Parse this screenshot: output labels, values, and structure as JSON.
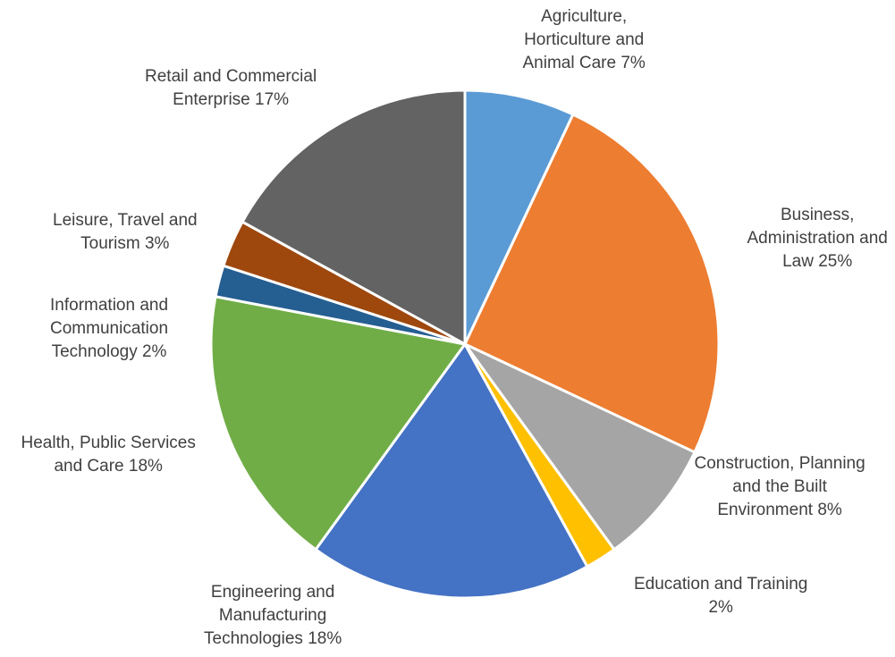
{
  "chart_data": {
    "type": "pie",
    "title": "",
    "start_angle_deg": 0,
    "direction": "clockwise",
    "slices": [
      {
        "label": "Agriculture, Horticulture and Animal Care",
        "value": 7,
        "display": [
          "Agriculture,",
          "Horticulture and",
          "Animal Care 7%"
        ],
        "color": "#5b9bd5"
      },
      {
        "label": "Business, Administration and Law",
        "value": 25,
        "display": [
          "Business,",
          "Administration and",
          "Law 25%"
        ],
        "color": "#ed7d31"
      },
      {
        "label": "Construction, Planning and the Built Environment",
        "value": 8,
        "display": [
          "Construction, Planning",
          "and the Built",
          "Environment 8%"
        ],
        "color": "#a5a5a5"
      },
      {
        "label": "Education and Training",
        "value": 2,
        "display": [
          "Education and Training",
          "2%"
        ],
        "color": "#ffc000"
      },
      {
        "label": "Engineering and Manufacturing Technologies",
        "value": 18,
        "display": [
          "Engineering and",
          "Manufacturing",
          "Technologies 18%"
        ],
        "color": "#4472c4"
      },
      {
        "label": "Health, Public Services and Care",
        "value": 18,
        "display": [
          "Health, Public Services",
          "and Care 18%"
        ],
        "color": "#70ad47"
      },
      {
        "label": "Information and Communication Technology",
        "value": 2,
        "display": [
          "Information and",
          "Communication",
          "Technology 2%"
        ],
        "color": "#255e91"
      },
      {
        "label": "Leisure, Travel and Tourism",
        "value": 3,
        "display": [
          "Leisure, Travel and",
          "Tourism 3%"
        ],
        "color": "#9e480e"
      },
      {
        "label": "Retail and Commercial Enterprise",
        "value": 17,
        "display": [
          "Retail and Commercial",
          "Enterprise 17%"
        ],
        "color": "#636363"
      }
    ]
  }
}
